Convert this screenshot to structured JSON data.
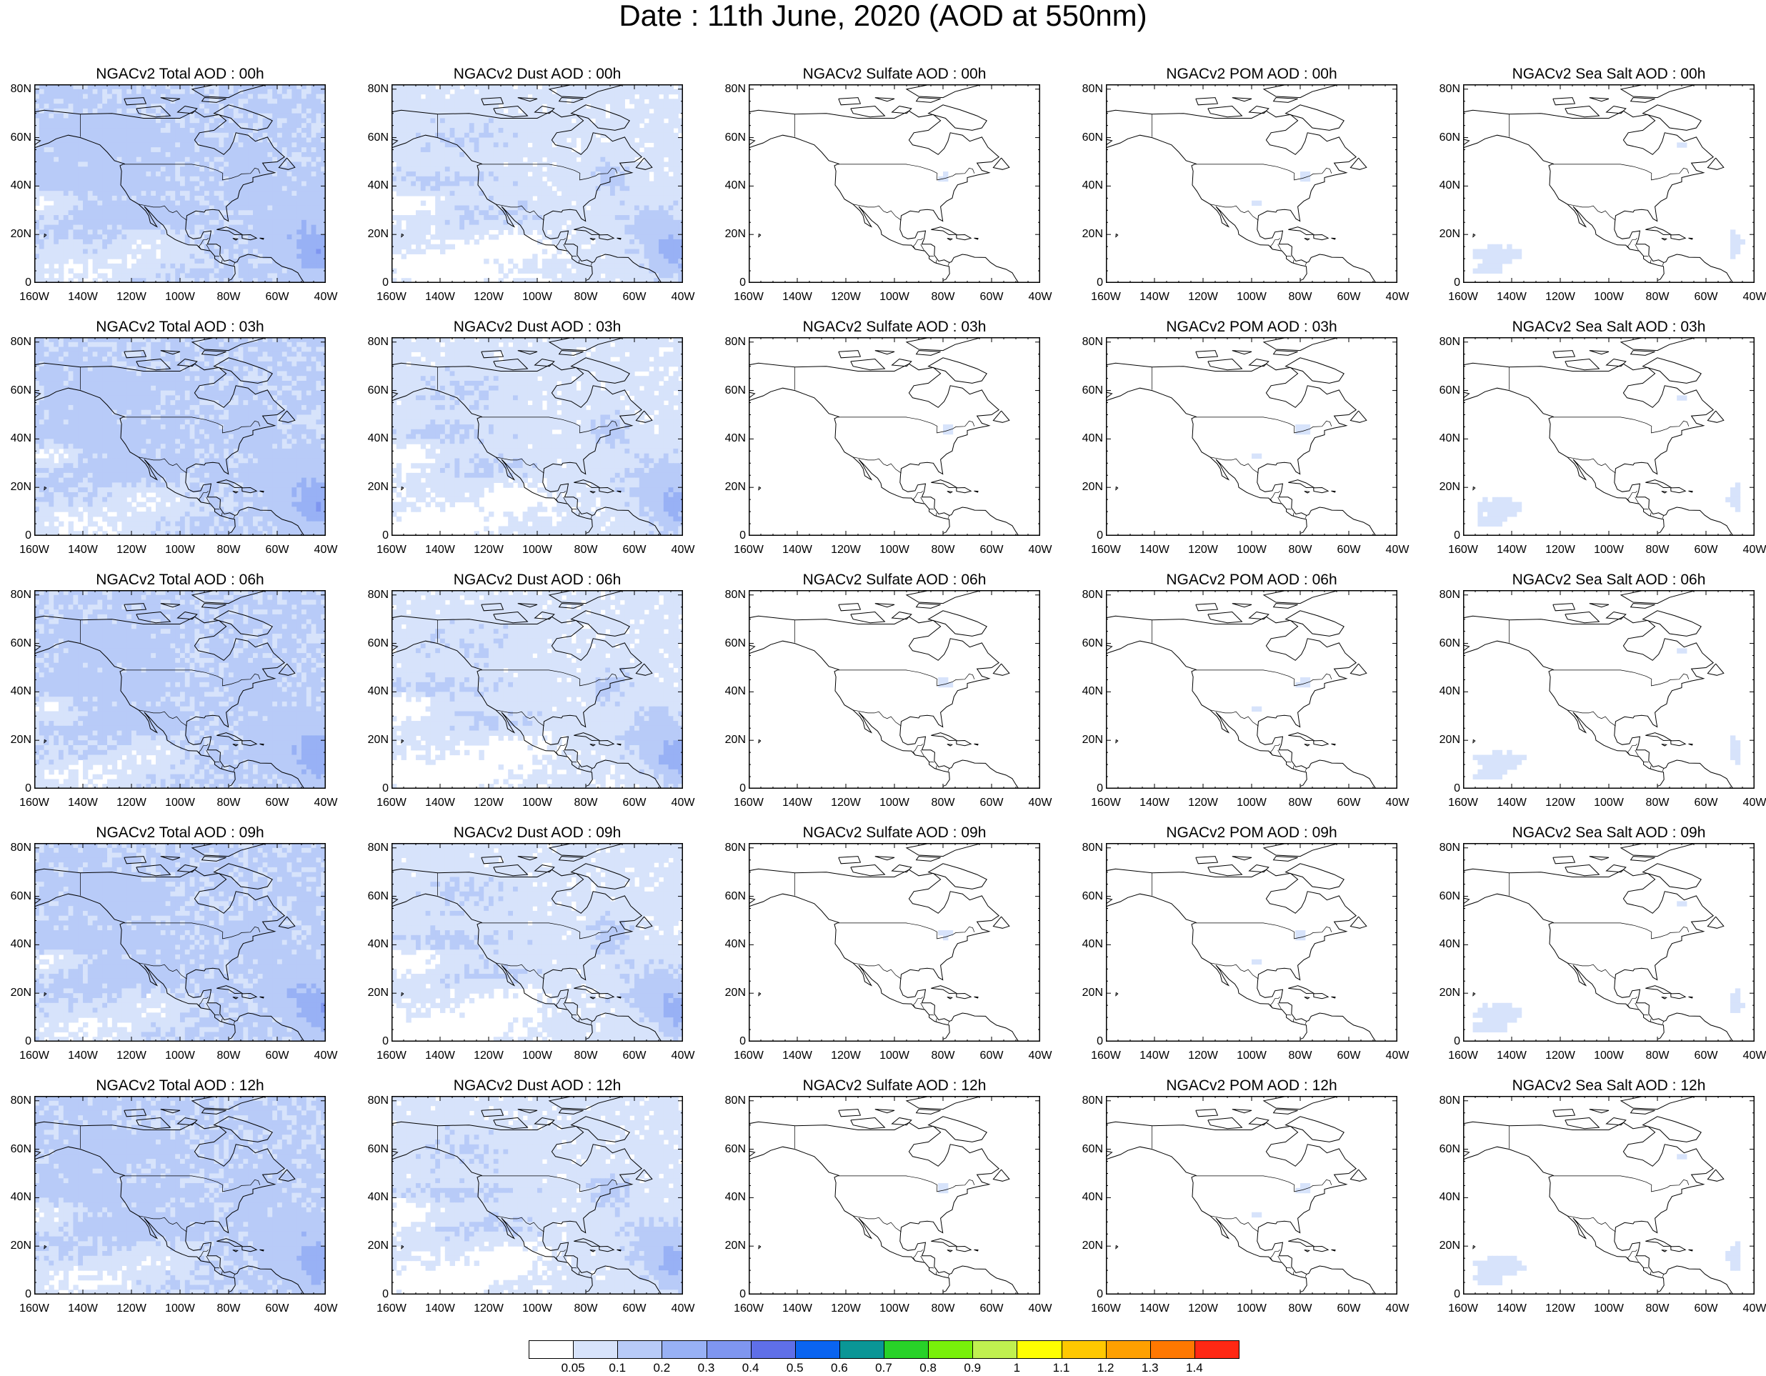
{
  "title": "Date : 11th June, 2020 (AOD at 550nm)",
  "lat_labels": [
    "80N",
    "60N",
    "40N",
    "20N",
    "0"
  ],
  "lon_labels": [
    "160W",
    "140W",
    "120W",
    "100W",
    "80W",
    "60W",
    "40W"
  ],
  "species": [
    {
      "key": "total",
      "intensity": 1.0
    },
    {
      "key": "dust",
      "intensity": 0.78
    },
    {
      "key": "sulfate",
      "intensity": 0.08
    },
    {
      "key": "pom",
      "intensity": 0.08
    },
    {
      "key": "seasalt",
      "intensity": 0.2
    }
  ],
  "panel_titles": [
    [
      "NGACv2 Total AOD : 00h",
      "NGACv2 Dust AOD : 00h",
      "NGACv2 Sulfate AOD : 00h",
      "NGACv2 POM AOD : 00h",
      "NGACv2 Sea Salt AOD : 00h"
    ],
    [
      "NGACv2 Total AOD : 03h",
      "NGACv2 Dust AOD : 03h",
      "NGACv2 Sulfate AOD : 03h",
      "NGACv2 POM AOD : 03h",
      "NGACv2 Sea Salt AOD : 03h"
    ],
    [
      "NGACv2 Total AOD : 06h",
      "NGACv2 Dust AOD : 06h",
      "NGACv2 Sulfate AOD : 06h",
      "NGACv2 POM AOD : 06h",
      "NGACv2 Sea Salt AOD : 06h"
    ],
    [
      "NGACv2 Total AOD : 09h",
      "NGACv2 Dust AOD : 09h",
      "NGACv2 Sulfate AOD : 09h",
      "NGACv2 POM AOD : 09h",
      "NGACv2 Sea Salt  AOD : 09h"
    ],
    [
      "NGACv2 Total AOD  : 12h",
      "NGACv2 Dust AOD : 12h",
      "NGACv2 Sulfate AOD : 12h",
      "NGACv2 POM  AOD : 12h",
      "NGACv2 Sea Salt  AOD : 12h"
    ]
  ],
  "colorbar": {
    "colors": [
      "#ffffff",
      "#d7e3fb",
      "#b8cbf8",
      "#98b1f5",
      "#7f96f0",
      "#5f6fe8",
      "#0a64f0",
      "#0a9696",
      "#28d228",
      "#78f00a",
      "#c0f050",
      "#ffff00",
      "#ffc800",
      "#ffa000",
      "#ff7800",
      "#ff2814"
    ],
    "labels": [
      "0.05",
      "0.1",
      "0.2",
      "0.3",
      "0.4",
      "0.5",
      "0.6",
      "0.7",
      "0.8",
      "0.9",
      "1",
      "1.1",
      "1.2",
      "1.3",
      "1.4"
    ]
  }
}
